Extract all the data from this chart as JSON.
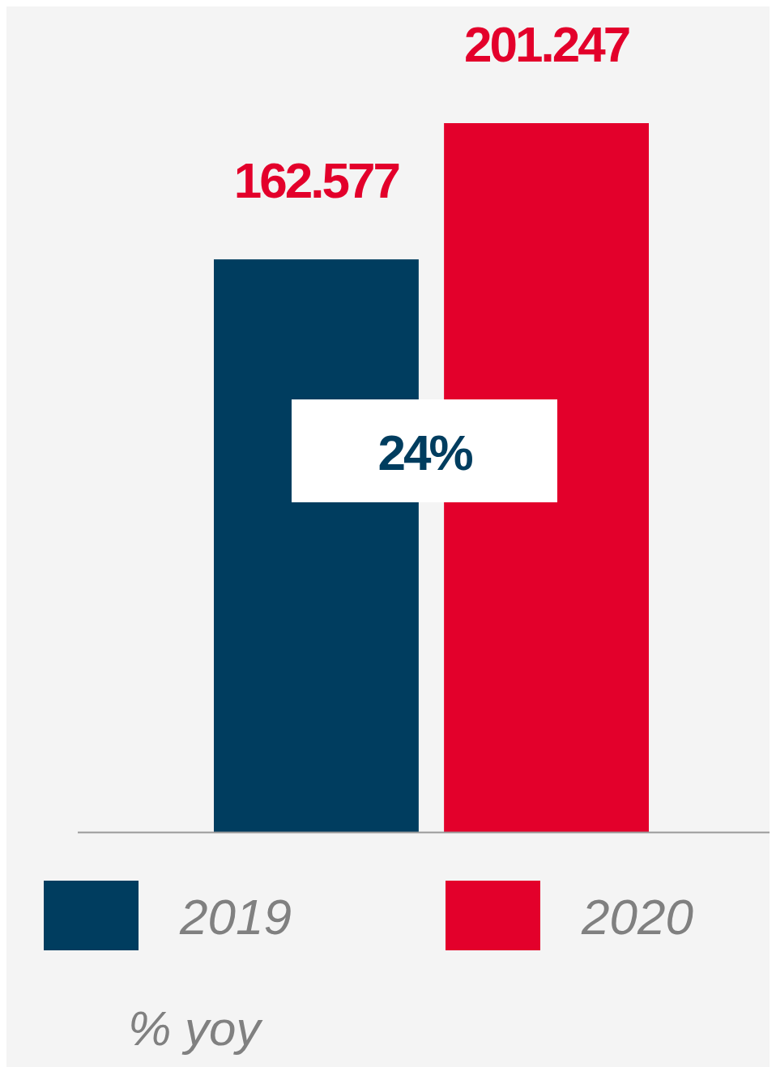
{
  "chart_data": {
    "type": "bar",
    "categories": [
      null
    ],
    "series": [
      {
        "name": "2019",
        "color": "#003d5f",
        "values": [
          162.577
        ]
      },
      {
        "name": "2020",
        "color": "#e3002b",
        "values": [
          201.247
        ]
      }
    ],
    "data_labels": true,
    "legend": "bottom",
    "annotations": [
      "24%",
      "% yoy"
    ]
  }
}
